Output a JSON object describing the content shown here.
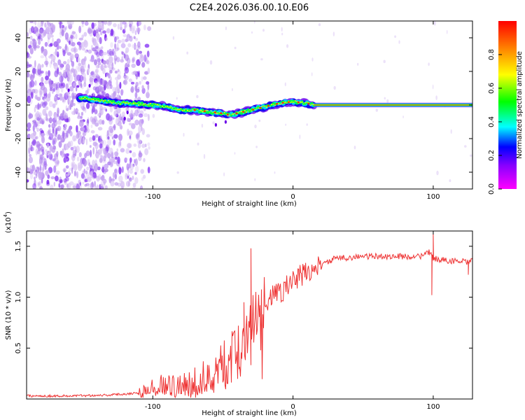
{
  "title": "C2E4.2026.036.00.10.E06",
  "chart_data": [
    {
      "type": "heatmap",
      "xlabel": "Height of straight line (km)",
      "ylabel": "Frequency (Hz)",
      "xlim": [
        -190,
        128
      ],
      "ylim": [
        -50,
        50
      ],
      "xticks": [
        -100,
        0,
        100
      ],
      "yticks": [
        -40,
        -20,
        0,
        20,
        40
      ],
      "colorbar": {
        "label": "Normalized spectral amplitude",
        "range": [
          0,
          1
        ],
        "ticks": [
          "0.0",
          "0.2",
          "0.4",
          "0.6",
          "0.8"
        ],
        "tick_values": [
          0,
          0.2,
          0.4,
          0.6,
          0.8
        ],
        "colors": [
          "#ff00ff",
          "#8800ff",
          "#0000ff",
          "#00ffff",
          "#00ff00",
          "#ffff00",
          "#ff8800",
          "#ff0000"
        ]
      },
      "ridge": {
        "x": [
          -150,
          -140,
          -125,
          -115,
          -100,
          -90,
          -80,
          -70,
          -60,
          -50,
          -45,
          -40,
          -30,
          -20,
          -10,
          0,
          10,
          15,
          128
        ],
        "freq": [
          4,
          3,
          1,
          1,
          0,
          -1,
          -3,
          -3,
          -4,
          -5,
          -6,
          -5,
          -3,
          -1,
          1,
          2,
          1,
          0,
          0
        ]
      },
      "noise_until_x": -110
    },
    {
      "type": "line",
      "xlabel": "Height of straight line (km)",
      "ylabel": "SNR (10 * v/v)",
      "multiplier_label": "(x10",
      "multiplier_exp": "4",
      "multiplier_close": ")",
      "xlim": [
        -190,
        128
      ],
      "ylim": [
        0,
        1.65
      ],
      "xticks": [
        -100,
        0,
        100
      ],
      "yticks": [
        "0.5",
        "1.0",
        "1.5"
      ],
      "ytick_values": [
        0.5,
        1.0,
        1.5
      ],
      "color": "#ee3333",
      "series": [
        {
          "name": "SNR",
          "x": [
            -190,
            -160,
            -130,
            -110,
            -100,
            -90,
            -80,
            -70,
            -60,
            -50,
            -40,
            -35,
            -30,
            -25,
            -20,
            -15,
            -10,
            -5,
            0,
            10,
            20,
            25,
            30,
            40,
            50,
            60,
            70,
            80,
            90,
            95,
            98,
            100,
            105,
            110,
            120,
            125,
            128
          ],
          "y": [
            0.03,
            0.03,
            0.04,
            0.06,
            0.12,
            0.15,
            0.12,
            0.15,
            0.25,
            0.35,
            0.5,
            0.6,
            0.75,
            0.85,
            0.95,
            1.0,
            1.05,
            1.1,
            1.15,
            1.25,
            1.3,
            1.35,
            1.38,
            1.39,
            1.4,
            1.4,
            1.4,
            1.4,
            1.4,
            1.42,
            1.45,
            1.38,
            1.37,
            1.36,
            1.35,
            1.34,
            1.36
          ]
        }
      ],
      "spikes": [
        {
          "x": -30,
          "y": 1.48
        },
        {
          "x": -35,
          "y": 0.95
        },
        {
          "x": 100,
          "y": 1.62
        },
        {
          "x": 99,
          "y": 1.02
        },
        {
          "x": 125,
          "y": 1.22
        }
      ]
    }
  ]
}
